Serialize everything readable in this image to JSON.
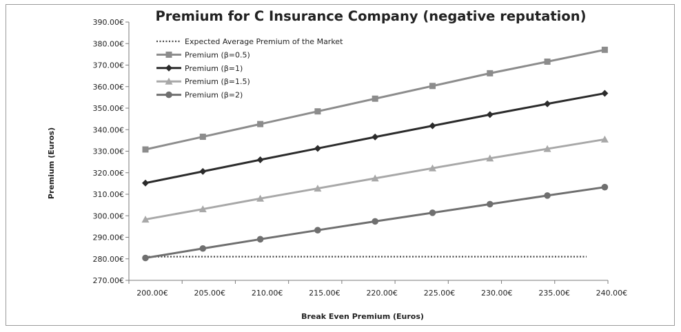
{
  "chart_data": {
    "type": "line",
    "title": "Premium for C Insurance Company (negative reputation)",
    "xlabel": "Break Even Premium (Euros)",
    "ylabel": "Premium (Euros)",
    "x": [
      200,
      205,
      210,
      215,
      220,
      225,
      230,
      235,
      240
    ],
    "x_tick_labels": [
      "200.00€",
      "205.00€",
      "210.00€",
      "215.00€",
      "220.00€",
      "225.00€",
      "230.00€",
      "235.00€",
      "240.00€"
    ],
    "ylim": [
      270,
      390
    ],
    "y_ticks": [
      270,
      280,
      290,
      300,
      310,
      320,
      330,
      340,
      350,
      360,
      370,
      380,
      390
    ],
    "y_tick_labels": [
      "270.00€",
      "280.00€",
      "290.00€",
      "300.00€",
      "310.00€",
      "320.00€",
      "330.00€",
      "340.00€",
      "350.00€",
      "360.00€",
      "370.00€",
      "380.00€",
      "390.00€"
    ],
    "grid": false,
    "legend_position": "top-left",
    "series": [
      {
        "name": "Expected Average Premium of the Market",
        "values": [
          281,
          281,
          281,
          281,
          281,
          281,
          281,
          281,
          281
        ],
        "color": "#444444",
        "marker": "none",
        "dash": "dotted"
      },
      {
        "name": "Premium (β=0.5)",
        "values": [
          330.8,
          336.7,
          342.6,
          348.5,
          354.4,
          360.3,
          366.2,
          371.6,
          377.1
        ],
        "color": "#8c8c8c",
        "marker": "square"
      },
      {
        "name": "Premium (β=1)",
        "values": [
          315.2,
          320.6,
          326.0,
          331.3,
          336.6,
          341.8,
          347.0,
          352.0,
          356.9
        ],
        "color": "#2b2b2b",
        "marker": "diamond"
      },
      {
        "name": "Premium (β=1.5)",
        "values": [
          298.3,
          303.1,
          308.0,
          312.7,
          317.4,
          322.1,
          326.7,
          331.1,
          335.5
        ],
        "color": "#a8a8a8",
        "marker": "triangle"
      },
      {
        "name": "Premium (β=2)",
        "values": [
          280.4,
          284.8,
          289.1,
          293.3,
          297.4,
          301.4,
          305.4,
          309.4,
          313.3
        ],
        "color": "#6f6f6f",
        "marker": "circle"
      }
    ]
  }
}
